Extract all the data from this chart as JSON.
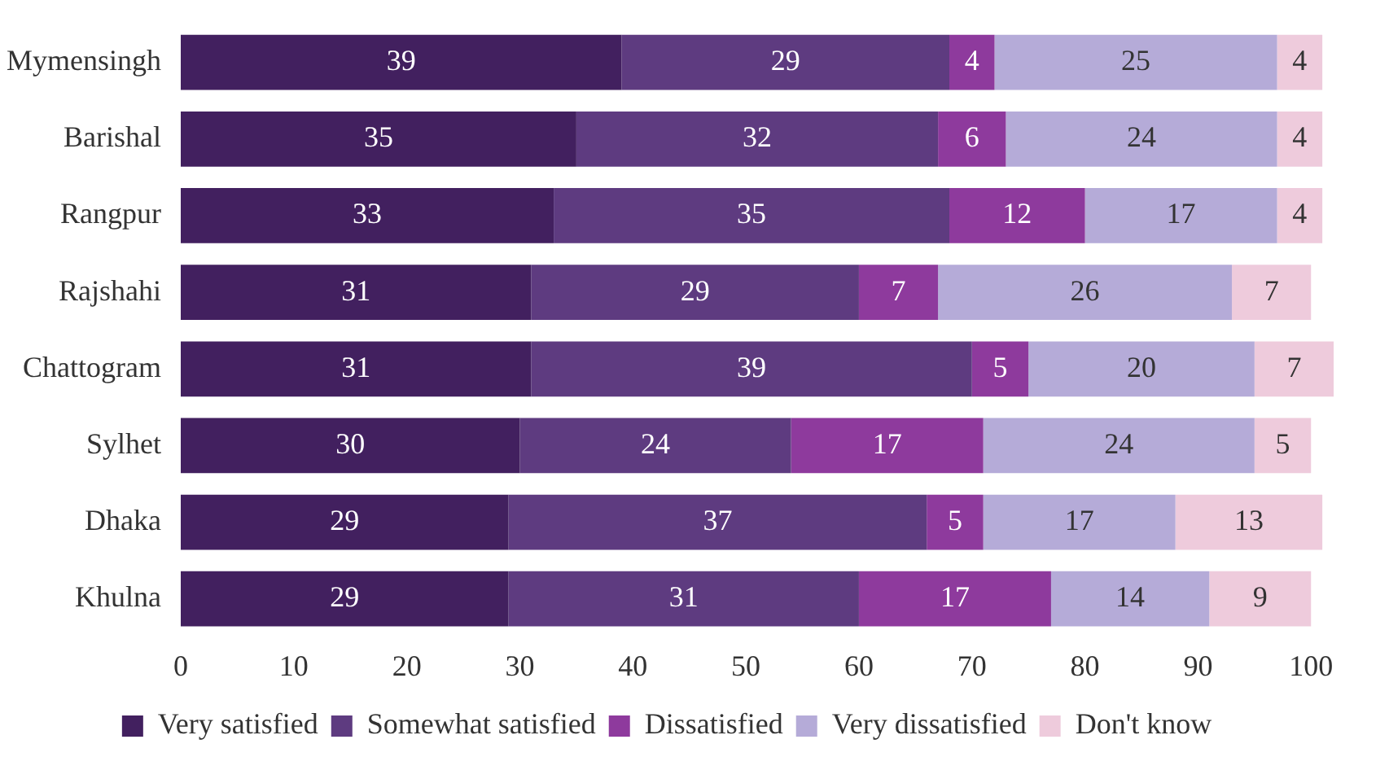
{
  "chart_data": {
    "type": "bar",
    "orientation": "horizontal",
    "stacked": true,
    "data_labels": true,
    "grid": false,
    "legend": "bottom",
    "xlim": [
      0,
      102
    ],
    "xticks": [
      0,
      10,
      20,
      30,
      40,
      50,
      60,
      70,
      80,
      90,
      100
    ],
    "categories": [
      "Mymensingh",
      "Barishal",
      "Rangpur",
      "Rajshahi",
      "Chattogram",
      "Sylhet",
      "Dhaka",
      "Khulna"
    ],
    "series": [
      {
        "name": "Very satisfied",
        "color": "#42205f",
        "values": [
          39,
          35,
          33,
          31,
          31,
          30,
          29,
          29
        ]
      },
      {
        "name": "Somewhat satisfied",
        "color": "#5e3b80",
        "values": [
          29,
          32,
          35,
          29,
          39,
          24,
          37,
          31
        ]
      },
      {
        "name": "Dissatisfied",
        "color": "#8e3a9d",
        "values": [
          4,
          6,
          12,
          7,
          5,
          17,
          5,
          17
        ]
      },
      {
        "name": "Very dissatisfied",
        "color": "#b5abd8",
        "values": [
          25,
          24,
          17,
          26,
          20,
          24,
          17,
          14
        ]
      },
      {
        "name": "Don't know",
        "color": "#eecbdc",
        "values": [
          4,
          4,
          4,
          7,
          7,
          5,
          13,
          9
        ]
      }
    ]
  }
}
